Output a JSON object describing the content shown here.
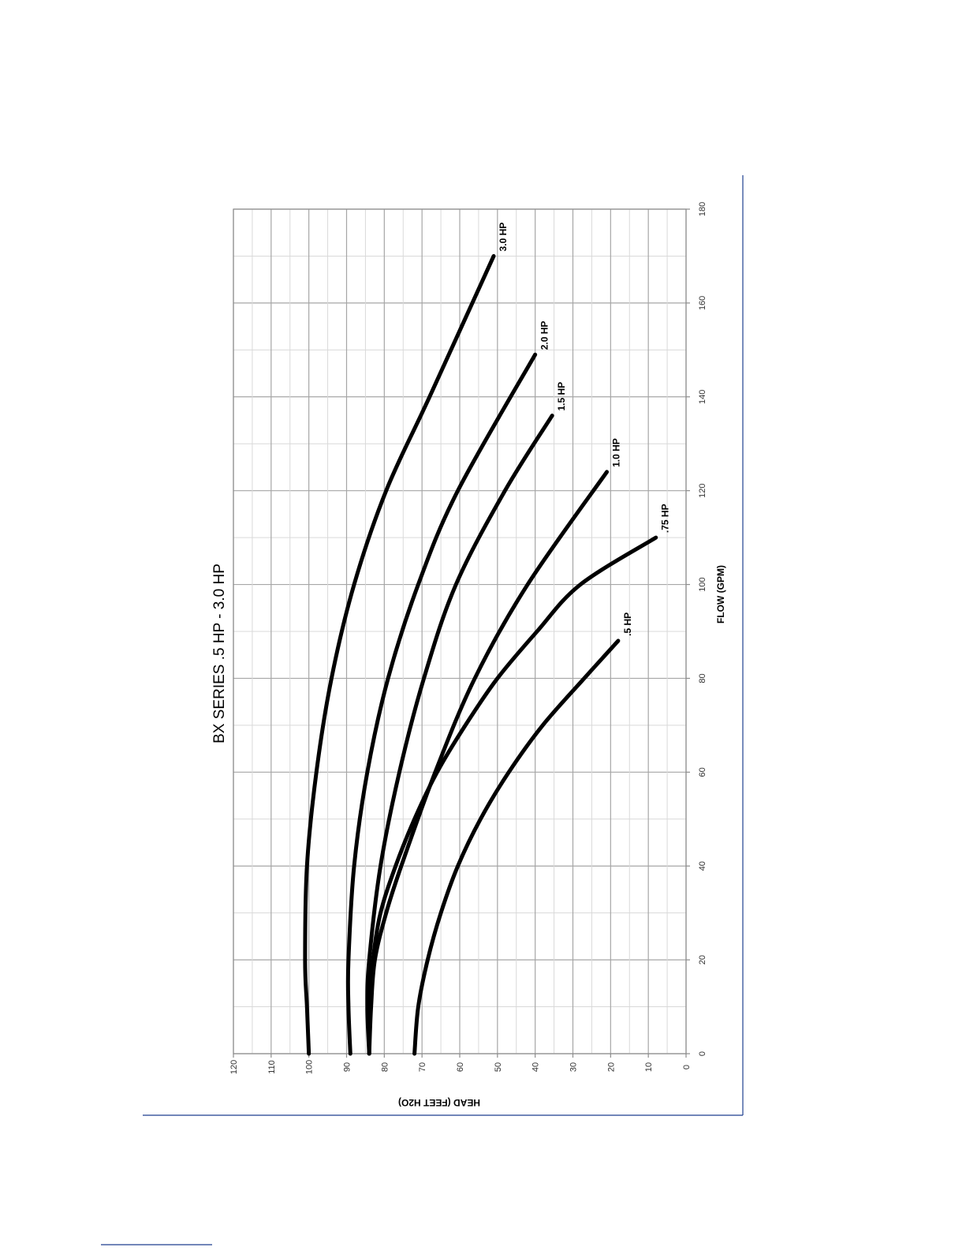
{
  "colors": {
    "curve": "#000000",
    "grid_major": "#a6a6a6",
    "grid_minor": "#d9d9d9",
    "page_rule": "#1f3f8f"
  },
  "chart_data": {
    "type": "line",
    "orientation": "rotated 90° counter-clockwise",
    "title": "BX SERIES .5 HP - 3.0 HP",
    "xlabel": "FLOW (GPM)",
    "ylabel": "HEAD (FEET H2O)",
    "xlim": [
      0,
      180
    ],
    "ylim": [
      0,
      120
    ],
    "xticks": [
      "0",
      "20",
      "40",
      "60",
      "80",
      "100",
      "120",
      "140",
      "160",
      "180"
    ],
    "yticks": [
      "0",
      "10",
      "20",
      "30",
      "40",
      "50",
      "60",
      "70",
      "80",
      "90",
      "100",
      "110",
      "120"
    ],
    "grid": true,
    "legend": "none (series labeled at curve ends)",
    "series": [
      {
        "name": ".5 HP",
        "x": [
          0,
          10,
          20,
          30,
          40,
          50,
          60,
          70,
          80,
          88
        ],
        "y": [
          72,
          71,
          68.5,
          65,
          60.5,
          54.5,
          47,
          38,
          27,
          18
        ]
      },
      {
        "name": ".75 HP",
        "x": [
          0,
          10,
          20,
          30,
          40,
          50,
          60,
          70,
          80,
          90,
          100,
          110
        ],
        "y": [
          84,
          84,
          83,
          81,
          77,
          72,
          66,
          58.5,
          50,
          39.5,
          28,
          8
        ]
      },
      {
        "name": "1.0 HP",
        "x": [
          0,
          10,
          20,
          30,
          40,
          60,
          80,
          100,
          124
        ],
        "y": [
          84,
          83.5,
          82.5,
          79.5,
          75.5,
          66.5,
          56,
          42,
          21
        ]
      },
      {
        "name": "1.5 HP",
        "x": [
          0,
          10,
          20,
          40,
          60,
          80,
          100,
          120,
          136
        ],
        "y": [
          84,
          84.5,
          84,
          81,
          76,
          69.5,
          61,
          48,
          35.5
        ]
      },
      {
        "name": "2.0 HP",
        "x": [
          0,
          10,
          20,
          40,
          60,
          80,
          100,
          120,
          149
        ],
        "y": [
          89,
          89.5,
          89.5,
          88,
          84.5,
          79,
          71,
          60.5,
          40
        ]
      },
      {
        "name": "3.0 HP",
        "x": [
          0,
          10,
          20,
          40,
          60,
          80,
          100,
          120,
          140,
          170
        ],
        "y": [
          100,
          100.5,
          101,
          100.5,
          98,
          94,
          88,
          79.5,
          68,
          51
        ]
      }
    ]
  }
}
